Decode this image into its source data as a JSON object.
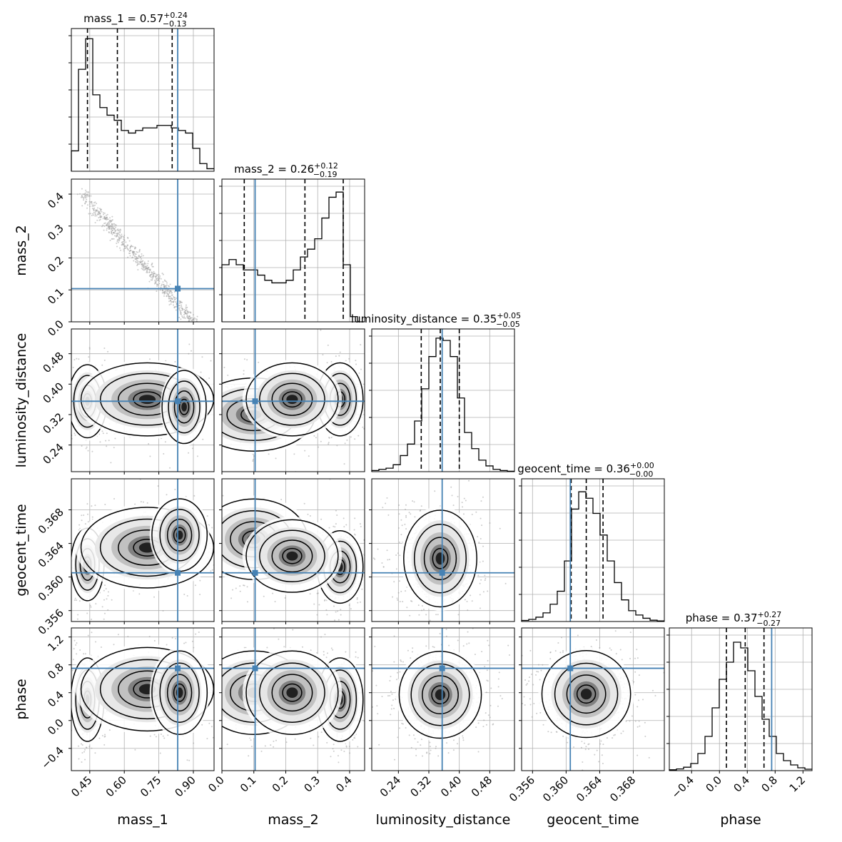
{
  "chart_data": {
    "type": "corner",
    "parameters": [
      "mass_1",
      "mass_2",
      "luminosity_distance",
      "geocent_time",
      "phase"
    ],
    "axis_labels": [
      "mass_1",
      "mass_2",
      "luminosity_distance",
      "geocent_time",
      "phase"
    ],
    "truths": [
      0.832,
      0.104,
      0.355,
      0.3605,
      0.75
    ],
    "truth_color": "#4682b4",
    "hist_color": "#000000",
    "ranges": [
      [
        0.37,
        0.99
      ],
      [
        0.0,
        0.447
      ],
      [
        0.17,
        0.545
      ],
      [
        0.3547,
        0.3717
      ],
      [
        -0.72,
        1.33
      ]
    ],
    "ticks": [
      {
        "values": [
          0.45,
          0.6,
          0.75,
          0.9
        ],
        "labels": [
          "0.45",
          "0.60",
          "0.75",
          "0.90"
        ]
      },
      {
        "values": [
          0.0,
          0.1,
          0.2,
          0.3,
          0.4
        ],
        "labels": [
          "0.0",
          "0.1",
          "0.2",
          "0.3",
          "0.4"
        ]
      },
      {
        "values": [
          0.24,
          0.32,
          0.4,
          0.48
        ],
        "labels": [
          "0.24",
          "0.32",
          "0.40",
          "0.48"
        ]
      },
      {
        "values": [
          0.356,
          0.36,
          0.364,
          0.368
        ],
        "labels": [
          "0.356",
          "0.360",
          "0.364",
          "0.368"
        ]
      },
      {
        "values": [
          -0.4,
          0.0,
          0.4,
          0.8,
          1.2
        ],
        "labels": [
          "−0.4",
          "0.0",
          "0.4",
          "0.8",
          "1.2"
        ]
      }
    ],
    "titles": [
      {
        "name": "mass_1",
        "value": "0.57",
        "plus": "+0.24",
        "minus": "−0.13"
      },
      {
        "name": "mass_2",
        "value": "0.26",
        "plus": "+0.12",
        "minus": "−0.19"
      },
      {
        "name": "luminosity_distance",
        "value": "0.35",
        "plus": "+0.05",
        "minus": "−0.05"
      },
      {
        "name": "geocent_time",
        "value": "0.36",
        "plus": "+0.00",
        "minus": "−0.00"
      },
      {
        "name": "phase",
        "value": "0.37",
        "plus": "+0.27",
        "minus": "−0.27"
      }
    ],
    "quantiles": [
      [
        0.44,
        0.57,
        0.808
      ],
      [
        0.07,
        0.26,
        0.38
      ],
      [
        0.3,
        0.35,
        0.4
      ],
      [
        0.3606,
        0.3624,
        0.3644
      ],
      [
        0.1,
        0.37,
        0.64
      ]
    ],
    "histograms": [
      {
        "edges_range": [
          0.37,
          0.99
        ],
        "counts": [
          8,
          40,
          52,
          30,
          25,
          22,
          20,
          16,
          15,
          16,
          17,
          17,
          18,
          18,
          17,
          16,
          15,
          9,
          3,
          1
        ]
      },
      {
        "edges_range": [
          0.0,
          0.447
        ],
        "counts": [
          22,
          24,
          22,
          20,
          20,
          18,
          16,
          15,
          15,
          16,
          20,
          25,
          28,
          32,
          40,
          48,
          50,
          22,
          2,
          0
        ]
      },
      {
        "edges_range": [
          0.17,
          0.545
        ],
        "counts": [
          0.5,
          1,
          1.5,
          3,
          7,
          12,
          22,
          36,
          50,
          58,
          57,
          50,
          32,
          17,
          10,
          5,
          2.5,
          1,
          0.5,
          0.2
        ]
      },
      {
        "edges_range": [
          0.3547,
          0.3717
        ],
        "counts": [
          0.5,
          1,
          2,
          4,
          8,
          14,
          28,
          52,
          60,
          57,
          50,
          40,
          28,
          18,
          10,
          5,
          3,
          1.5,
          0.6,
          0.3
        ]
      },
      {
        "edges_range": [
          -0.72,
          1.33
        ],
        "counts": [
          0.3,
          0.6,
          1.2,
          2.5,
          6,
          12,
          22,
          32,
          38,
          45,
          43,
          35,
          26,
          18,
          12,
          6,
          3.5,
          2,
          1,
          0.5
        ]
      }
    ],
    "histogram_ylims": [
      56,
      55,
      62,
      66,
      50
    ]
  }
}
